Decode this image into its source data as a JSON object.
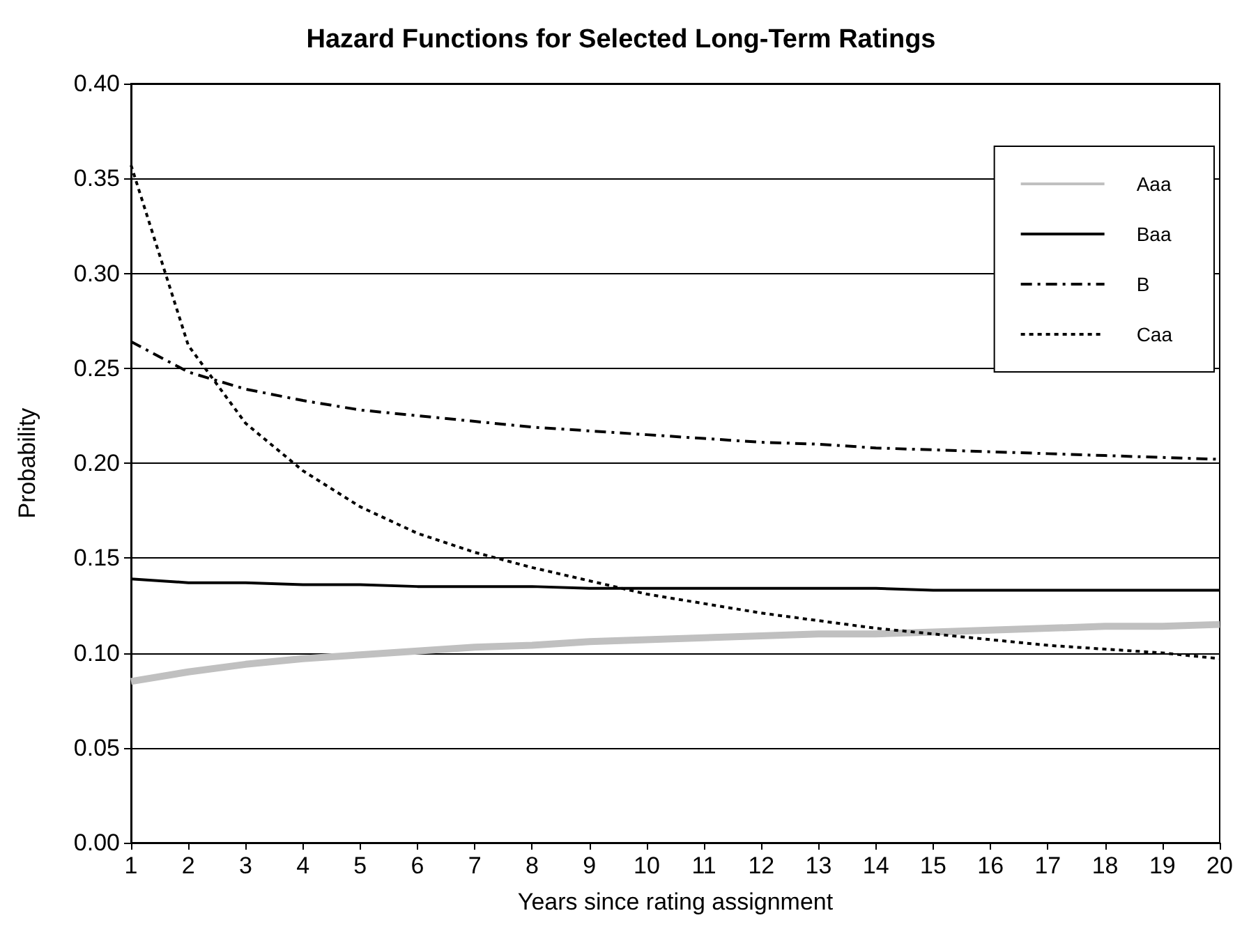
{
  "chart_data": {
    "type": "line",
    "title": "Hazard Functions for Selected Long-Term Ratings",
    "xlabel": "Years since rating assignment",
    "ylabel": "Probability",
    "x": [
      1,
      2,
      3,
      4,
      5,
      6,
      7,
      8,
      9,
      10,
      11,
      12,
      13,
      14,
      15,
      16,
      17,
      18,
      19,
      20
    ],
    "xlim": [
      1,
      20
    ],
    "xticks": [
      1,
      2,
      3,
      4,
      5,
      6,
      7,
      8,
      9,
      10,
      11,
      12,
      13,
      14,
      15,
      16,
      17,
      18,
      19,
      20
    ],
    "ylim": [
      0,
      0.4
    ],
    "yticks": [
      {
        "value": 0,
        "label": "0.00"
      },
      {
        "value": 0.05,
        "label": "0.05"
      },
      {
        "value": 0.1,
        "label": "0.10"
      },
      {
        "value": 0.15,
        "label": "0.15"
      },
      {
        "value": 0.2,
        "label": "0.20"
      },
      {
        "value": 0.25,
        "label": "0.25"
      },
      {
        "value": 0.3,
        "label": "0.30"
      },
      {
        "value": 0.35,
        "label": "0.35"
      },
      {
        "value": 0.4,
        "label": "0.40"
      }
    ],
    "grid": "y",
    "legend": "top right",
    "marker": "none",
    "series": [
      {
        "name": "Aaa",
        "color": "#c0c0c0",
        "line_style": "solid",
        "values": [
          0.085,
          0.09,
          0.094,
          0.097,
          0.099,
          0.101,
          0.103,
          0.104,
          0.106,
          0.107,
          0.108,
          0.109,
          0.11,
          0.11,
          0.111,
          0.112,
          0.113,
          0.114,
          0.114,
          0.115
        ]
      },
      {
        "name": "Baa",
        "color": "#000000",
        "line_style": "solid",
        "values": [
          0.139,
          0.137,
          0.137,
          0.136,
          0.136,
          0.135,
          0.135,
          0.135,
          0.134,
          0.134,
          0.134,
          0.134,
          0.134,
          0.134,
          0.133,
          0.133,
          0.133,
          0.133,
          0.133,
          0.133
        ]
      },
      {
        "name": "B",
        "color": "#000000",
        "line_style": "dashdot",
        "values": [
          0.264,
          0.248,
          0.239,
          0.233,
          0.228,
          0.225,
          0.222,
          0.219,
          0.217,
          0.215,
          0.213,
          0.211,
          0.21,
          0.208,
          0.207,
          0.206,
          0.205,
          0.204,
          0.203,
          0.202
        ]
      },
      {
        "name": "Caa",
        "color": "#000000",
        "line_style": "dotted",
        "values": [
          0.357,
          0.262,
          0.221,
          0.196,
          0.177,
          0.163,
          0.153,
          0.145,
          0.138,
          0.131,
          0.126,
          0.121,
          0.117,
          0.113,
          0.11,
          0.107,
          0.104,
          0.102,
          0.1,
          0.097
        ]
      }
    ]
  }
}
